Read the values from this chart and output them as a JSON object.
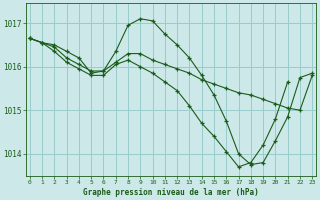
{
  "title": "Graphe pression niveau de la mer (hPa)",
  "bg_color": "#cce8e8",
  "grid_color": "#99cccc",
  "line_color": "#1a5c1a",
  "x_ticks": [
    0,
    1,
    2,
    3,
    4,
    5,
    6,
    7,
    8,
    9,
    10,
    11,
    12,
    13,
    14,
    15,
    16,
    17,
    18,
    19,
    20,
    21,
    22,
    23
  ],
  "y_ticks": [
    1014,
    1015,
    1016,
    1017
  ],
  "ylim": [
    1013.5,
    1017.45
  ],
  "xlim": [
    -0.3,
    23.3
  ],
  "lines": [
    {
      "x": [
        0,
        1,
        2,
        3,
        4,
        5,
        6,
        7,
        8,
        9,
        10,
        11,
        12,
        13,
        14,
        15,
        16,
        17,
        18,
        19,
        20,
        21,
        22,
        23
      ],
      "y": [
        1016.65,
        1016.55,
        1016.5,
        1016.35,
        1016.2,
        1015.85,
        1015.9,
        1016.35,
        1016.95,
        1017.1,
        1017.05,
        1016.75,
        1016.5,
        1016.2,
        1015.8,
        1015.35,
        1014.75,
        1014.0,
        1013.75,
        1013.8,
        1014.3,
        1014.85,
        1015.75,
        1015.85
      ]
    },
    {
      "x": [
        0,
        1,
        2,
        3,
        4,
        5,
        6,
        7,
        8,
        9,
        10,
        11,
        12,
        13,
        14,
        15,
        16,
        17,
        18,
        19,
        20,
        21,
        22,
        23
      ],
      "y": [
        1016.65,
        1016.55,
        1016.45,
        1016.2,
        1016.05,
        1015.9,
        1015.9,
        1016.1,
        1016.3,
        1016.3,
        1016.15,
        1016.05,
        1015.95,
        1015.85,
        1015.7,
        1015.6,
        1015.5,
        1015.4,
        1015.35,
        1015.25,
        1015.15,
        1015.05,
        1015.0,
        1015.8
      ]
    },
    {
      "x": [
        0,
        1,
        2,
        3,
        4,
        5,
        6,
        7,
        8,
        9,
        10,
        11,
        12,
        13,
        14,
        15,
        16,
        17,
        18,
        19,
        20,
        21
      ],
      "y": [
        1016.65,
        1016.55,
        1016.35,
        1016.1,
        1015.95,
        1015.8,
        1015.8,
        1016.05,
        1016.15,
        1016.0,
        1015.85,
        1015.65,
        1015.45,
        1015.1,
        1014.7,
        1014.4,
        1014.05,
        1013.7,
        1013.8,
        1014.2,
        1014.8,
        1015.65
      ]
    }
  ]
}
